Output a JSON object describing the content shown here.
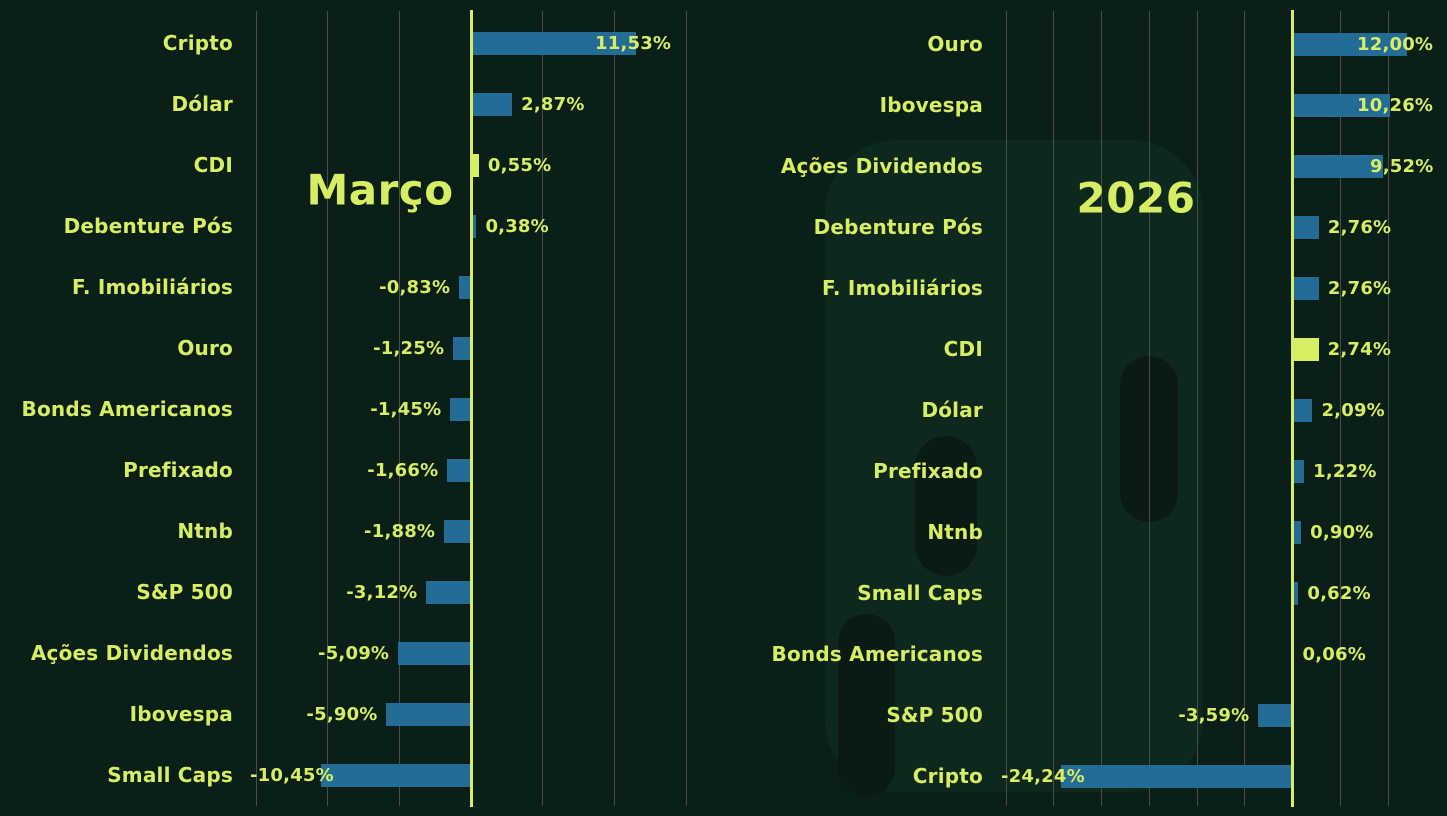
{
  "style": {
    "background": "#0a1f17",
    "accent": "#d7ed64",
    "bar_blue": "#226c96",
    "grid_line": "#465049",
    "watermark_plate": "#0e281e",
    "watermark_hole": "#091b13"
  },
  "chart_data": [
    {
      "type": "bar",
      "orientation": "horizontal",
      "title": "Março",
      "categories": [
        "Cripto",
        "Dólar",
        "CDI",
        "Debenture Pós",
        "F. Imobiliários",
        "Ouro",
        "Bonds Americanos",
        "Prefixado",
        "Ntnb",
        "S&P 500",
        "Ações Dividendos",
        "Ibovespa",
        "Small Caps"
      ],
      "values": [
        11.53,
        2.87,
        0.55,
        0.38,
        -0.83,
        -1.25,
        -1.45,
        -1.66,
        -1.88,
        -3.12,
        -5.09,
        -5.9,
        -10.45
      ],
      "value_labels": [
        "11,53%",
        "2,87%",
        "0,55%",
        "0,38%",
        "-0,83%",
        "-1,25%",
        "-1,45%",
        "-1,66%",
        "-1,88%",
        "-3,12%",
        "-5,09%",
        "-5,90%",
        "-10,45%"
      ],
      "highlight_category": "CDI",
      "xlim": [
        -15,
        15
      ],
      "grid_step": 5,
      "grid": true,
      "zero_line": true,
      "legend": "none",
      "xlabel": "",
      "ylabel": ""
    },
    {
      "type": "bar",
      "orientation": "horizontal",
      "title": "2026",
      "categories": [
        "Ouro",
        "Ibovespa",
        "Ações Dividendos",
        "Debenture Pós",
        "F. Imobiliários",
        "CDI",
        "Dólar",
        "Prefixado",
        "Ntnb",
        "Small Caps",
        "Bonds Americanos",
        "S&P 500",
        "Cripto"
      ],
      "values": [
        12.0,
        10.26,
        9.52,
        2.76,
        2.76,
        2.74,
        2.09,
        1.22,
        0.9,
        0.62,
        0.06,
        -3.59,
        -24.24
      ],
      "value_labels": [
        "12,00%",
        "10,26%",
        "9,52%",
        "2,76%",
        "2,76%",
        "2,74%",
        "2,09%",
        "1,22%",
        "0,90%",
        "0,62%",
        "0,06%",
        "-3,59%",
        "-24,24%"
      ],
      "highlight_category": "CDI",
      "xlim": [
        -30,
        10
      ],
      "grid_step": 5,
      "grid": true,
      "zero_line": true,
      "legend": "none",
      "xlabel": "",
      "ylabel": ""
    }
  ]
}
